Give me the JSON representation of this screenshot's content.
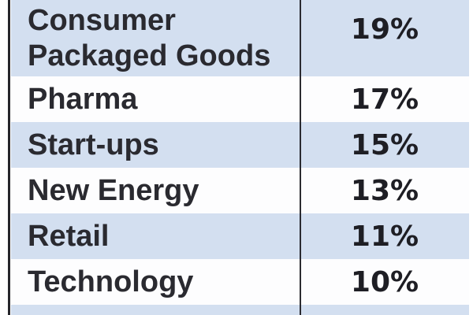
{
  "table": {
    "rows": [
      {
        "label": "Consumer Packaged Goods",
        "value": "19%"
      },
      {
        "label": "Pharma",
        "value": "17%"
      },
      {
        "label": "Start-ups",
        "value": "15%"
      },
      {
        "label": "New Energy",
        "value": "13%"
      },
      {
        "label": "Retail",
        "value": "11%"
      },
      {
        "label": "Technology",
        "value": "10%"
      }
    ],
    "colors": {
      "row_highlight": "#d3dff0",
      "row_plain": "#fdfdfe",
      "border": "#26262b",
      "label_text": "#2a2a30",
      "value_text": "#1e1e24"
    }
  },
  "chart_data": {
    "type": "table",
    "categories": [
      "Consumer Packaged Goods",
      "Pharma",
      "Start-ups",
      "New Energy",
      "Retail",
      "Technology"
    ],
    "values": [
      19,
      17,
      15,
      13,
      11,
      10
    ],
    "value_unit": "%",
    "title": "",
    "notes": "Two-column table fragment; alternating row shading; first row wraps to two lines; partial next row visible at bottom edge"
  }
}
